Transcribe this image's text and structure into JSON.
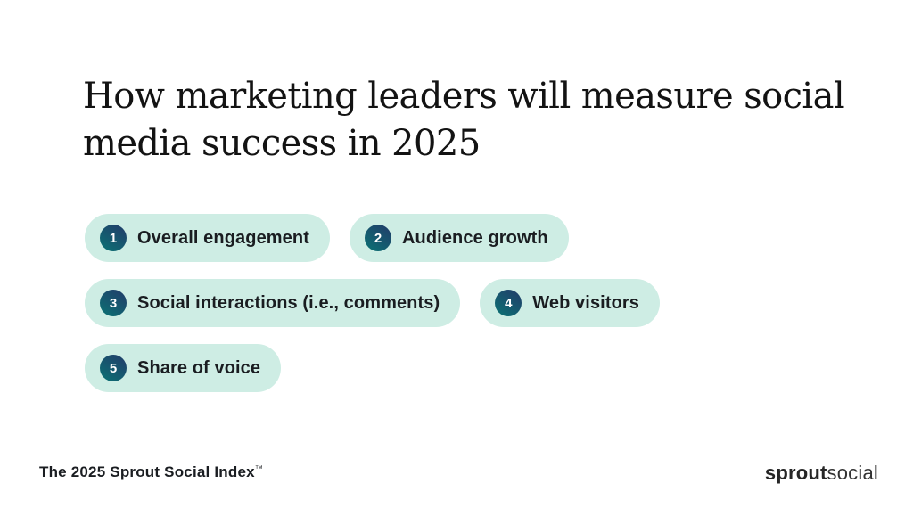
{
  "title": {
    "line1": "How marketing leaders will measure social",
    "line2": "media success in 2025",
    "full": "How marketing leaders will measure social media success in 2025"
  },
  "badges": [
    {
      "number": "1",
      "label": "Overall engagement"
    },
    {
      "number": "2",
      "label": "Audience growth"
    },
    {
      "number": "3",
      "label": "Social interactions (i.e., comments)"
    },
    {
      "number": "4",
      "label": "Web visitors"
    },
    {
      "number": "5",
      "label": "Share of voice"
    }
  ],
  "footer": {
    "source": "The 2025 Sprout Social Index",
    "trademark": "™",
    "logo_bold": "sprout",
    "logo_light": "social"
  },
  "colors": {
    "background": "#FFFFFF",
    "pill_background": "#CEEDE4",
    "badge_gradient_start": "#20406A",
    "badge_gradient_end": "#0D6E73",
    "text": "#1A1D21",
    "title_text": "#131313"
  }
}
